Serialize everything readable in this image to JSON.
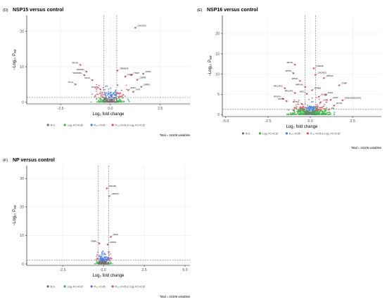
{
  "colors": {
    "ns": "#6e6e6e",
    "log2fc": "#3cb34a",
    "padj": "#4a78e8",
    "both": "#e84a5f",
    "grid": "#ececec",
    "threshold": "#555555"
  },
  "legend": {
    "ns": "N.S.",
    "log2fc": "Log₂ FC>0.32",
    "padj": "Pₐₔⱼ <0.05",
    "both": "Pₐₔⱼ <0.05 & Log₂ FC>0.32"
  },
  "total": "Total = 34106 variables",
  "xlabel": "Log₂ fold change",
  "ylabel": "−Log₁₀ Pₐₔⱼ",
  "chart_data": [
    {
      "type": "scatter",
      "panel_letter": "(D)",
      "title": "NSP15 versus control",
      "xlim": [
        -4.2,
        4.0
      ],
      "ylim": [
        -0.5,
        24.5
      ],
      "xticks": [
        -2.5,
        0.0,
        2.5
      ],
      "yticks": [
        0,
        10,
        20
      ],
      "hlines": [
        1.3
      ],
      "vlines": [
        -0.32,
        0.32
      ],
      "genes": [
        {
          "label": "CHCHD10",
          "x": 1.25,
          "y": 21.0
        },
        {
          "label": "RPLP0",
          "x": -1.5,
          "y": 10.5
        },
        {
          "label": "TMEM158",
          "x": 0.35,
          "y": 8.9
        },
        {
          "label": "RNASE1",
          "x": -1.2,
          "y": 8.6
        },
        {
          "label": "STARD3NL",
          "x": -1.3,
          "y": 7.6
        },
        {
          "label": "TXNIP",
          "x": 1.05,
          "y": 7.6
        },
        {
          "label": "NAIP1",
          "x": 0.75,
          "y": 7.2
        },
        {
          "label": "KLF10",
          "x": -0.9,
          "y": 6.2
        },
        {
          "label": "CEBPB",
          "x": 1.35,
          "y": 6.3
        },
        {
          "label": "TTLL4",
          "x": -1.75,
          "y": 5.0
        },
        {
          "label": "ERRFI1",
          "x": 1.55,
          "y": 4.3
        },
        {
          "label": "MTCO3",
          "x": -0.5,
          "y": 3.6
        },
        {
          "label": "EGR1",
          "x": 0.9,
          "y": 3.4
        },
        {
          "label": "ATF3",
          "x": 1.15,
          "y": 2.9
        },
        {
          "label": "DDIT4",
          "x": 1.65,
          "y": 8.0
        }
      ]
    },
    {
      "type": "scatter",
      "panel_letter": "(E)",
      "title": "NSP16 versus control",
      "xlim": [
        -5.2,
        4.2
      ],
      "ylim": [
        -0.5,
        24.5
      ],
      "xticks": [
        -5.0,
        -2.5,
        0.0,
        2.5
      ],
      "yticks": [
        0,
        5,
        10,
        15,
        20
      ],
      "hlines": [
        1.3
      ],
      "vlines": [
        -0.32,
        0.32
      ],
      "genes": [
        {
          "label": "RPLP0",
          "x": -0.9,
          "y": 12.3
        },
        {
          "label": "HSPA1B",
          "x": 0.2,
          "y": 11.4
        },
        {
          "label": "NPIPB",
          "x": -1.0,
          "y": 10.2
        },
        {
          "label": "CHCHD10",
          "x": 0.3,
          "y": 9.8
        },
        {
          "label": "HSPA1A",
          "x": 0.8,
          "y": 9.0
        },
        {
          "label": "RPS26",
          "x": -0.6,
          "y": 8.3
        },
        {
          "label": "TXNIP",
          "x": 1.7,
          "y": 7.2
        },
        {
          "label": "MRPL46",
          "x": -0.3,
          "y": 6.8
        },
        {
          "label": "RPL13P12",
          "x": -1.5,
          "y": 6.5
        },
        {
          "label": "ATP8B1",
          "x": 0.1,
          "y": 6.0
        },
        {
          "label": "RPL10P3",
          "x": -0.9,
          "y": 5.3
        },
        {
          "label": "MKS1",
          "x": -0.2,
          "y": 5.1
        },
        {
          "label": "EGR1",
          "x": 0.9,
          "y": 4.8
        },
        {
          "label": "DUSP1",
          "x": 0.5,
          "y": 4.4
        },
        {
          "label": "RPS27A",
          "x": -1.6,
          "y": 3.9
        },
        {
          "label": "EGR3",
          "x": 1.2,
          "y": 3.6
        },
        {
          "label": "RN7SK",
          "x": -1.4,
          "y": 3.3
        },
        {
          "label": "CCN1",
          "x": 0.6,
          "y": 3.0
        },
        {
          "label": "RN7SL1",
          "x": -0.5,
          "y": 2.6
        },
        {
          "label": "ENSG00000205791",
          "x": 1.9,
          "y": 3.5
        },
        {
          "label": "MT-TE",
          "x": 1.4,
          "y": 2.2
        }
      ]
    },
    {
      "type": "scatter",
      "panel_letter": "(F)",
      "title": "NP versus control",
      "xlim": [
        -4.7,
        5.3
      ],
      "ylim": [
        -0.5,
        34.5
      ],
      "xticks": [
        -2.5,
        0.0,
        2.5,
        5.0
      ],
      "yticks": [
        0,
        10,
        20,
        30
      ],
      "hlines": [
        1.3
      ],
      "vlines": [
        -0.32,
        0.32
      ],
      "genes": [
        {
          "label": "DNAJB1",
          "x": 0.2,
          "y": 26.5
        },
        {
          "label": "HSPA1A",
          "x": 0.35,
          "y": 23.8
        },
        {
          "label": "DDX3",
          "x": 0.45,
          "y": 9.5
        },
        {
          "label": "KRBA1",
          "x": -0.25,
          "y": 7.2
        },
        {
          "label": "HSPA8",
          "x": 0.25,
          "y": 6.8
        }
      ]
    }
  ]
}
